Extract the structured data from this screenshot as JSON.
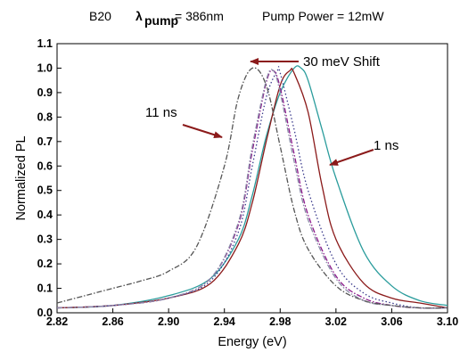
{
  "chart_data": {
    "type": "line",
    "title_parts": {
      "sample": "B20",
      "lambda": "λ",
      "lambda_sub": "pump",
      "wavelength": "= 386nm",
      "power": "Pump Power = 12mW"
    },
    "xlabel": "Energy (eV)",
    "ylabel": "Normalized PL",
    "xlim": [
      2.82,
      3.1
    ],
    "ylim": [
      0.0,
      1.1
    ],
    "xticks": [
      "2.82",
      "2.86",
      "2.90",
      "2.94",
      "2.98",
      "3.02",
      "3.06",
      "3.10"
    ],
    "yticks": [
      "0.0",
      "0.1",
      "0.2",
      "0.3",
      "0.4",
      "0.5",
      "0.6",
      "0.7",
      "0.8",
      "0.9",
      "1.0",
      "1.1"
    ],
    "grid": false,
    "annotations": {
      "shift": "30 meV Shift",
      "late": "11 ns",
      "early": "1 ns"
    },
    "series": [
      {
        "color": "#2a9c9c",
        "style": "solid",
        "x": [
          2.82,
          2.86,
          2.9,
          2.93,
          2.95,
          2.96,
          2.97,
          2.98,
          2.99,
          2.995,
          3.0,
          3.01,
          3.02,
          3.04,
          3.06,
          3.08,
          3.1
        ],
        "y": [
          0.02,
          0.03,
          0.07,
          0.14,
          0.3,
          0.48,
          0.72,
          0.9,
          1.0,
          1.0,
          0.95,
          0.75,
          0.55,
          0.25,
          0.11,
          0.05,
          0.03
        ]
      },
      {
        "color": "#8b1a1a",
        "style": "solid",
        "x": [
          2.82,
          2.86,
          2.9,
          2.93,
          2.95,
          2.96,
          2.97,
          2.98,
          2.987,
          2.99,
          3.0,
          3.01,
          3.02,
          3.04,
          3.06,
          3.08,
          3.1
        ],
        "y": [
          0.02,
          0.03,
          0.06,
          0.12,
          0.28,
          0.45,
          0.7,
          0.93,
          0.99,
          0.98,
          0.82,
          0.52,
          0.3,
          0.12,
          0.06,
          0.04,
          0.02
        ]
      },
      {
        "color": "#3a3a8c",
        "style": "dotted",
        "x": [
          2.82,
          2.86,
          2.9,
          2.93,
          2.95,
          2.96,
          2.97,
          2.978,
          2.98,
          2.99,
          3.0,
          3.02,
          3.04,
          3.06,
          3.08,
          3.1
        ],
        "y": [
          0.02,
          0.03,
          0.06,
          0.13,
          0.33,
          0.6,
          0.88,
          0.99,
          0.98,
          0.75,
          0.5,
          0.2,
          0.08,
          0.04,
          0.02,
          0.02
        ]
      },
      {
        "color": "#8b1a8b",
        "style": "dashdot",
        "x": [
          2.82,
          2.86,
          2.9,
          2.93,
          2.95,
          2.96,
          2.97,
          2.975,
          2.98,
          2.99,
          3.0,
          3.02,
          3.04,
          3.06,
          3.08,
          3.1
        ],
        "y": [
          0.02,
          0.03,
          0.06,
          0.14,
          0.36,
          0.66,
          0.94,
          0.99,
          0.92,
          0.65,
          0.4,
          0.15,
          0.06,
          0.03,
          0.02,
          0.02
        ]
      },
      {
        "color": "#8a8aa8",
        "style": "dashdot",
        "x": [
          2.82,
          2.86,
          2.9,
          2.93,
          2.95,
          2.96,
          2.97,
          2.975,
          2.98,
          2.99,
          3.0,
          3.02,
          3.04,
          3.06,
          3.08,
          3.1
        ],
        "y": [
          0.02,
          0.03,
          0.06,
          0.14,
          0.37,
          0.68,
          0.95,
          0.99,
          0.9,
          0.62,
          0.38,
          0.14,
          0.05,
          0.03,
          0.02,
          0.02
        ]
      },
      {
        "color": "#555555",
        "style": "dashdot",
        "x": [
          2.82,
          2.84,
          2.86,
          2.88,
          2.9,
          2.92,
          2.94,
          2.95,
          2.96,
          2.97,
          2.98,
          2.99,
          3.0,
          3.02,
          3.04,
          3.06,
          3.08,
          3.1
        ],
        "y": [
          0.04,
          0.07,
          0.1,
          0.13,
          0.17,
          0.27,
          0.6,
          0.88,
          1.0,
          0.93,
          0.68,
          0.42,
          0.26,
          0.11,
          0.05,
          0.03,
          0.02,
          0.02
        ]
      }
    ]
  }
}
